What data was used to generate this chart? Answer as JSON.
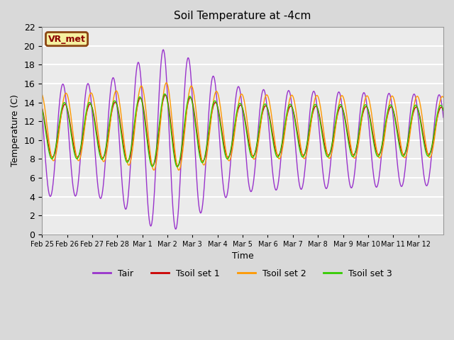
{
  "title": "Soil Temperature at -4cm",
  "xlabel": "Time",
  "ylabel": "Temperature (C)",
  "ylim": [
    0,
    22
  ],
  "annotation_text": "VR_met",
  "annotation_box_facecolor": "#f5f0a0",
  "annotation_border_color": "#8B4513",
  "annotation_text_color": "#8B0000",
  "fig_bg_color": "#d9d9d9",
  "plot_bg_color": "#ebebeb",
  "color_tair": "#9933cc",
  "color_tsoil1": "#cc0000",
  "color_tsoil2": "#ff9900",
  "color_tsoil3": "#33cc00",
  "legend_labels": [
    "Tair",
    "Tsoil set 1",
    "Tsoil set 2",
    "Tsoil set 3"
  ],
  "tick_labels": [
    "Feb 25",
    "Feb 26",
    "Feb 27",
    "Feb 28",
    "Mar 1",
    "Mar 2",
    "Mar 3",
    "Mar 4",
    "Mar 5",
    "Mar 6",
    "Mar 7",
    "Mar 8",
    "Mar 9",
    "Mar 10",
    "Mar 11",
    "Mar 12"
  ],
  "n_days": 16,
  "pts_per_day": 48
}
